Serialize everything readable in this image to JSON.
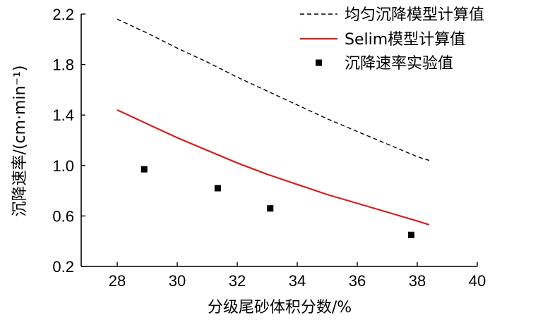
{
  "chart_data": {
    "type": "line",
    "xlabel": "分级尾砂体积分数/%",
    "ylabel": "沉降速率/(cm·min⁻¹)",
    "xlim": [
      26.8,
      40
    ],
    "ylim": [
      0.2,
      2.2
    ],
    "xticks": [
      28,
      30,
      32,
      34,
      36,
      38,
      40
    ],
    "yticks": [
      0.2,
      0.6,
      1.0,
      1.4,
      1.8,
      2.2
    ],
    "xtick_labels": [
      "28",
      "30",
      "32",
      "34",
      "36",
      "38",
      "40"
    ],
    "ytick_labels": [
      "0.2",
      "0.6",
      "1.0",
      "1.4",
      "1.8",
      "2.2"
    ],
    "legend_position": "top-right",
    "series": [
      {
        "name": "均匀沉降模型计算值",
        "style": "dashed",
        "color": "#000000",
        "x": [
          28,
          29,
          30,
          31,
          32,
          33,
          34,
          35,
          36,
          37,
          38,
          38.4
        ],
        "y": [
          2.16,
          2.05,
          1.93,
          1.82,
          1.7,
          1.59,
          1.48,
          1.37,
          1.27,
          1.17,
          1.07,
          1.04
        ]
      },
      {
        "name": "Selim模型计算值",
        "style": "solid",
        "color": "#d42020",
        "x": [
          28,
          29,
          30,
          31,
          32,
          33,
          34,
          35,
          36,
          37,
          38,
          38.4
        ],
        "y": [
          1.44,
          1.33,
          1.22,
          1.12,
          1.02,
          0.93,
          0.85,
          0.77,
          0.7,
          0.63,
          0.56,
          0.53
        ]
      },
      {
        "name": "沉降速率实验值",
        "style": "markers",
        "color": "#000000",
        "x": [
          28.9,
          31.35,
          33.1,
          37.8
        ],
        "y": [
          0.97,
          0.82,
          0.66,
          0.45
        ]
      }
    ]
  }
}
